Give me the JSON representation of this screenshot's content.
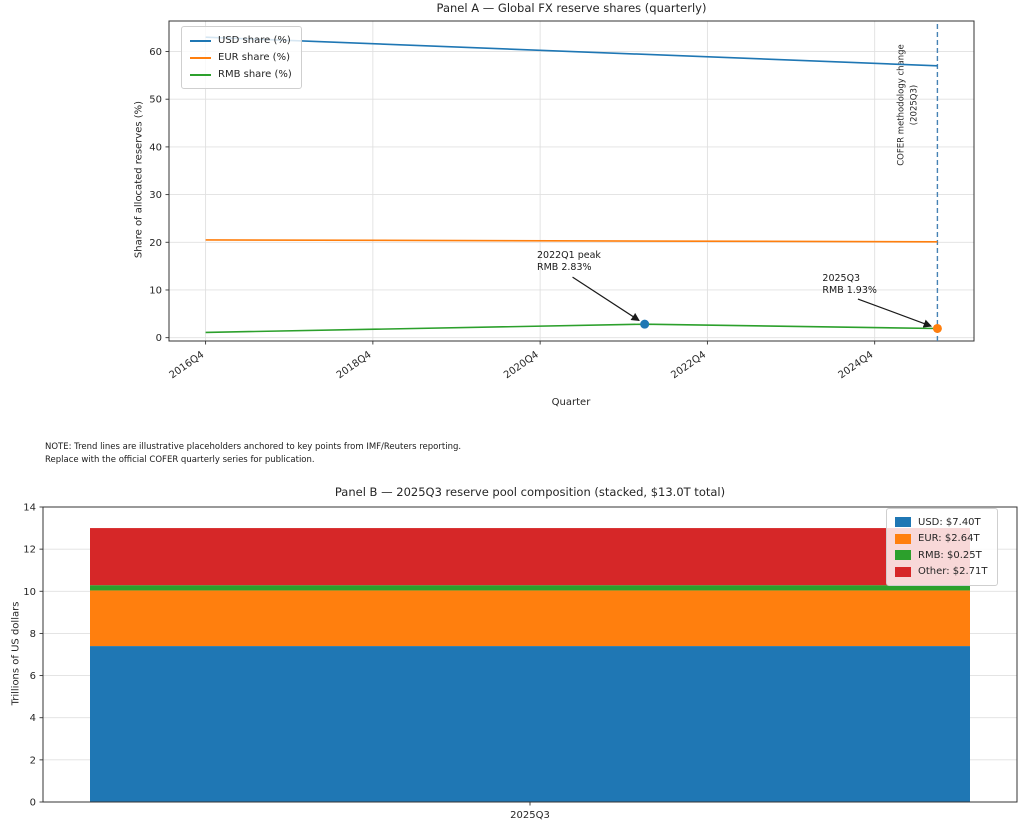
{
  "note": {
    "line1": "NOTE: Trend lines are illustrative placeholders anchored to key points from IMF/Reuters reporting.",
    "line2": "Replace with the official COFER quarterly series for publication."
  },
  "chart_data": [
    {
      "type": "line",
      "title": "Panel A — Global FX reserve shares (quarterly)",
      "xlabel": "Quarter",
      "ylabel": "Share of allocated reserves (%)",
      "grid": true,
      "legend_position": "upper-left",
      "xlim": [
        -1.75,
        36.75
      ],
      "ylim": [
        -0.7,
        66.4
      ],
      "yticks": [
        0,
        10,
        20,
        30,
        40,
        50,
        60
      ],
      "xticks": [
        {
          "index": 0,
          "label": "2016Q4"
        },
        {
          "index": 8,
          "label": "2018Q4"
        },
        {
          "index": 16,
          "label": "2020Q4"
        },
        {
          "index": 24,
          "label": "2022Q4"
        },
        {
          "index": 32,
          "label": "2024Q4"
        }
      ],
      "series": [
        {
          "name": "USD share (%)",
          "color": "#1f77b4",
          "points": [
            [
              0,
              63.0
            ],
            [
              35,
              57.0
            ]
          ]
        },
        {
          "name": "EUR share (%)",
          "color": "#ff7f0e",
          "points": [
            [
              0,
              20.5
            ],
            [
              35,
              20.1
            ]
          ]
        },
        {
          "name": "RMB share (%)",
          "color": "#2ca02c",
          "points": [
            [
              0,
              1.1
            ],
            [
              21,
              2.83
            ],
            [
              35,
              1.93
            ]
          ]
        }
      ],
      "markers": [
        {
          "x": 21,
          "y": 2.83,
          "color": "#1f77b4"
        },
        {
          "x": 35,
          "y": 1.93,
          "color": "#ff7f0e"
        }
      ],
      "vline": {
        "x": 35,
        "color": "#4682b4",
        "style": "dashed",
        "label_line1": "COFER methodology change",
        "label_line2": "(2025Q3)"
      },
      "annotations": [
        {
          "text_line1": "2022Q1 peak",
          "text_line2": "RMB 2.83%",
          "target": [
            21,
            2.83
          ],
          "text_at": [
            15.85,
            16.7
          ],
          "arrow_from": [
            17.55,
            12.7
          ]
        },
        {
          "text_line1": "2025Q3",
          "text_line2": "RMB 1.93%",
          "target": [
            35,
            1.93
          ],
          "text_at": [
            29.5,
            11.9
          ],
          "arrow_from": [
            31.2,
            8.1
          ]
        }
      ]
    },
    {
      "type": "bar",
      "stacked": true,
      "title": "Panel B — 2025Q3 reserve pool composition (stacked, $13.0T total)",
      "xlabel": "",
      "ylabel": "Trillions of US dollars",
      "grid": true,
      "legend_position": "upper-right",
      "categories": [
        "2025Q3"
      ],
      "ylim": [
        0,
        14
      ],
      "yticks": [
        0,
        2,
        4,
        6,
        8,
        10,
        12,
        14
      ],
      "total": "$13.0T",
      "series": [
        {
          "name": "USD: $7.40T",
          "color": "#1f77b4",
          "values": [
            7.4
          ]
        },
        {
          "name": "EUR: $2.64T",
          "color": "#ff7f0e",
          "values": [
            2.64
          ]
        },
        {
          "name": "RMB: $0.25T",
          "color": "#2ca02c",
          "values": [
            0.25
          ]
        },
        {
          "name": "Other: $2.71T",
          "color": "#d62728",
          "values": [
            2.71
          ]
        }
      ]
    }
  ]
}
